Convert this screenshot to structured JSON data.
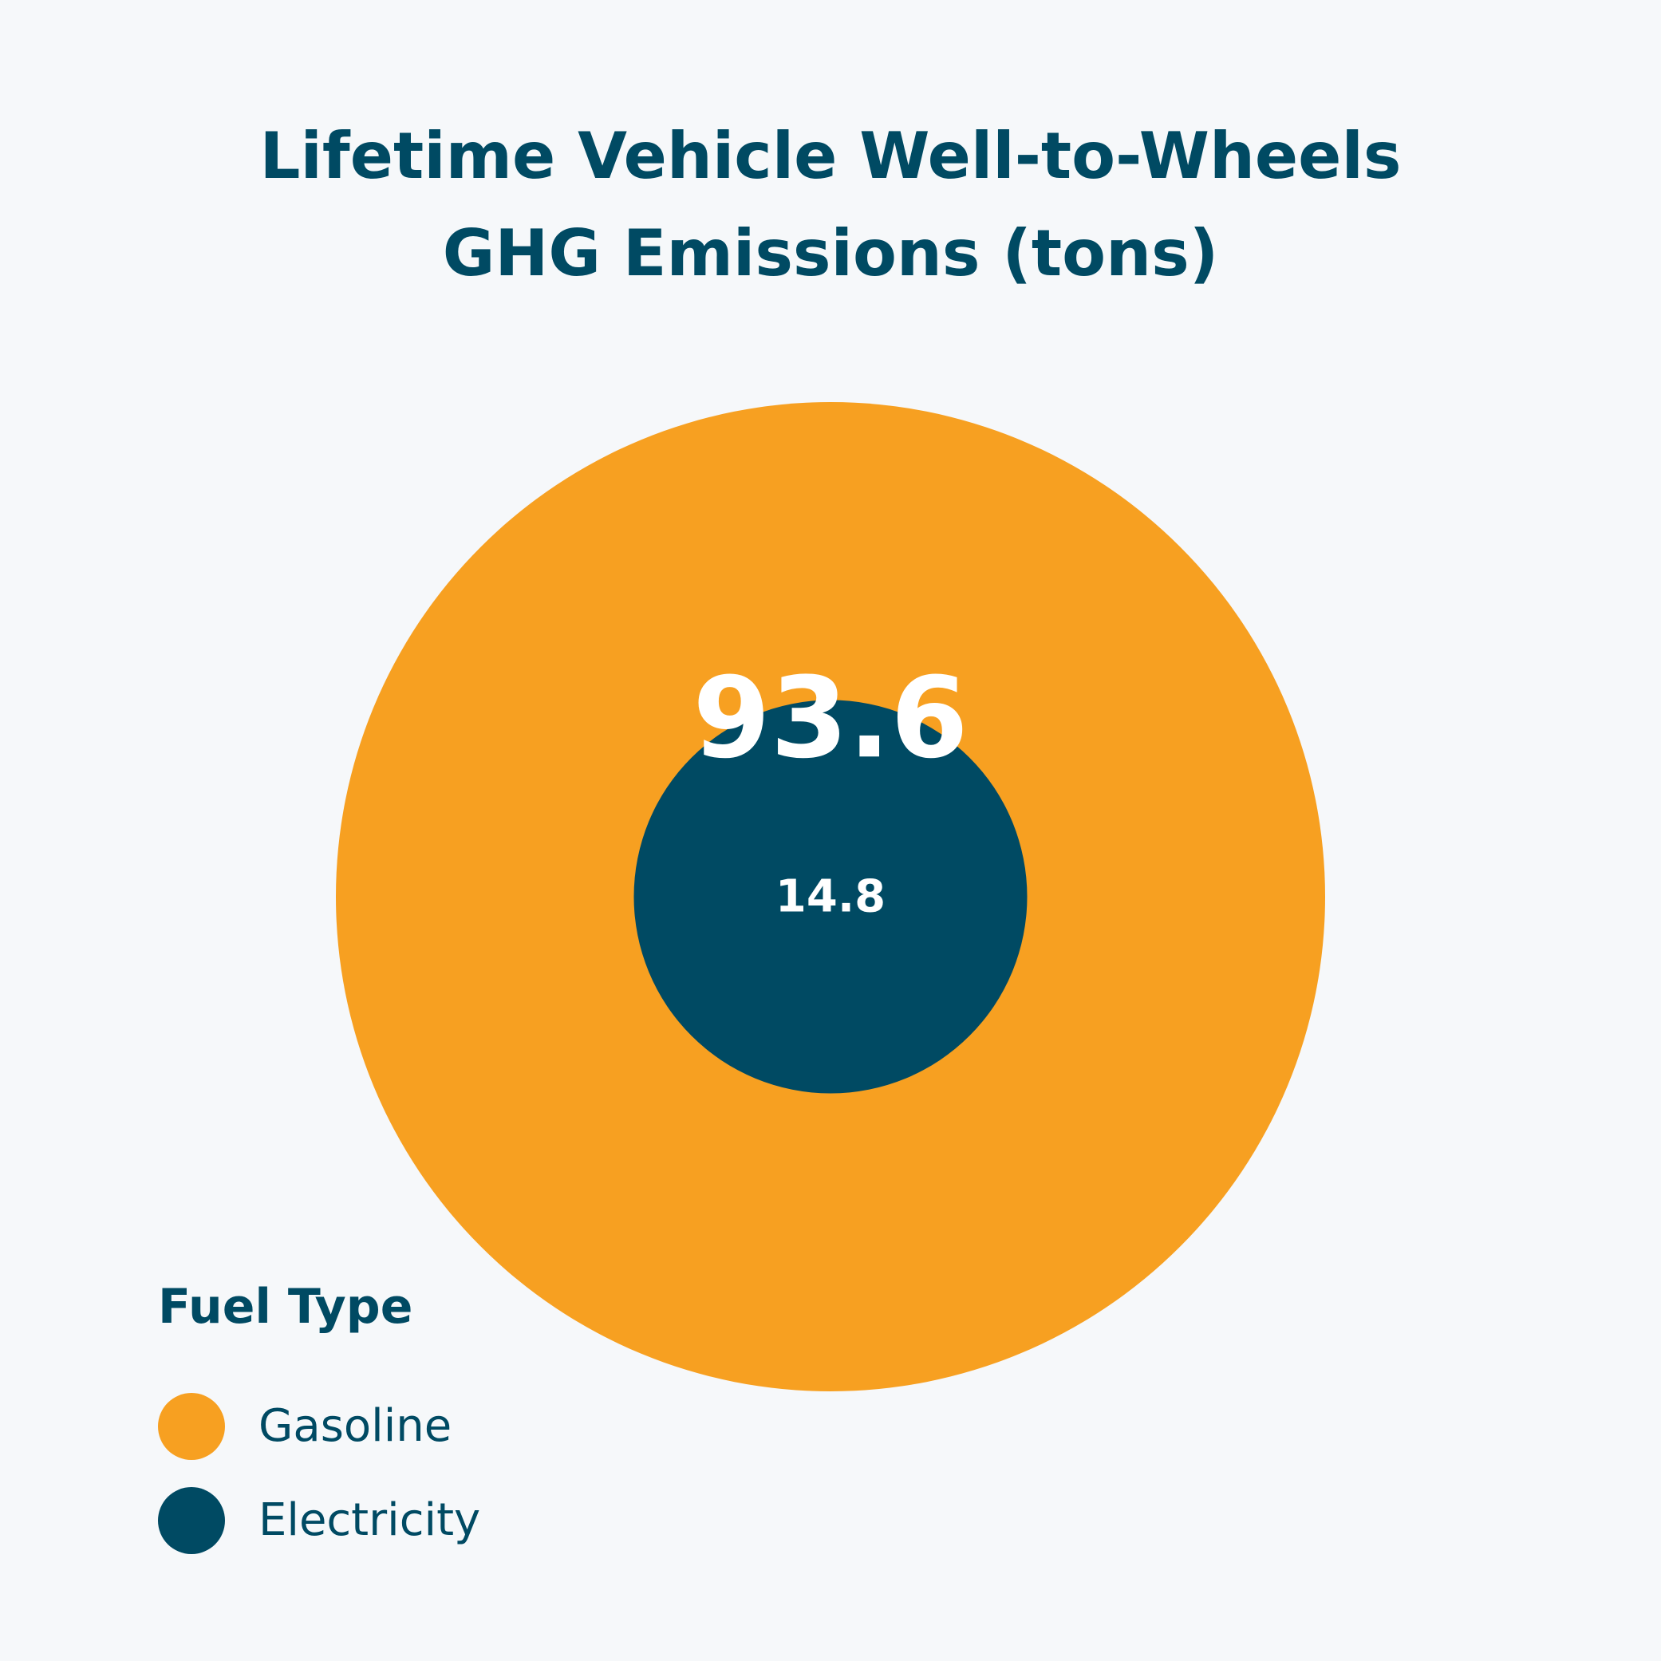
{
  "chart_data": {
    "type": "bubble",
    "title_lines": [
      "Lifetime Vehicle Well-to-Wheels",
      "GHG Emissions (tons)"
    ],
    "legend_title": "Fuel Type",
    "legend_placement": "bottom-left",
    "series": [
      {
        "name": "Gasoline",
        "value": 93.6,
        "value_label": "93.6",
        "color": "#f7a021",
        "label_color": "#ffffff"
      },
      {
        "name": "Electricity",
        "value": 14.8,
        "value_label": "14.8",
        "color": "#004a63",
        "label_color": "#ffffff"
      }
    ]
  }
}
